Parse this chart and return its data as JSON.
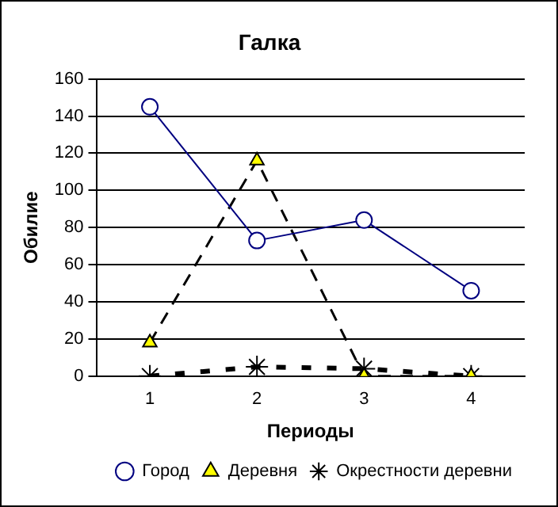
{
  "chart_data": {
    "type": "line",
    "title": "Галка",
    "xlabel": "Периоды",
    "ylabel": "Обилие",
    "categories": [
      "1",
      "2",
      "3",
      "4"
    ],
    "series": [
      {
        "name": "Город",
        "color": "#000080",
        "values": [
          145,
          73,
          84,
          46
        ],
        "marker": "circle",
        "line_style": "solid"
      },
      {
        "name": "Деревня",
        "color": "#000000",
        "values": [
          18,
          116,
          0,
          0
        ],
        "marker": "triangle",
        "line_style": "dashed"
      },
      {
        "name": "Окрестности деревни",
        "color": "#000000",
        "values": [
          0,
          5,
          4,
          0
        ],
        "marker": "cross",
        "line_style": "dashed"
      }
    ],
    "ylim": [
      0,
      160
    ],
    "yticks": [
      0,
      20,
      40,
      60,
      80,
      100,
      120,
      140,
      160
    ],
    "grid": "y",
    "legend": "bottom"
  }
}
